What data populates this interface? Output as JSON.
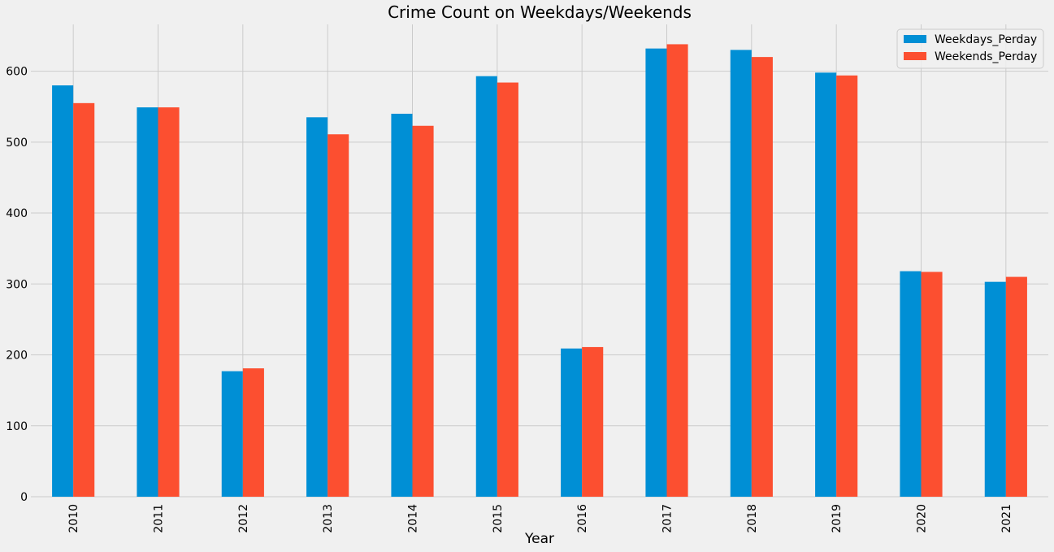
{
  "chart_data": {
    "type": "bar",
    "title": "Crime Count on Weekdays/Weekends",
    "xlabel": "Year",
    "ylabel": "",
    "categories": [
      "2010",
      "2011",
      "2012",
      "2013",
      "2014",
      "2015",
      "2016",
      "2017",
      "2018",
      "2019",
      "2020",
      "2021"
    ],
    "series": [
      {
        "name": "Weekdays_Perday",
        "color": "#008fd5",
        "values": [
          580,
          549,
          177,
          535,
          540,
          593,
          209,
          632,
          630,
          598,
          318,
          303
        ]
      },
      {
        "name": "Weekends_Perday",
        "color": "#fc4f30",
        "values": [
          555,
          549,
          181,
          511,
          523,
          584,
          211,
          638,
          620,
          594,
          317,
          310
        ]
      }
    ],
    "ylim": [
      0,
      666
    ],
    "yticks": [
      "0",
      "100",
      "200",
      "300",
      "400",
      "500",
      "600"
    ],
    "grid": true,
    "legend_position": "top-right",
    "background": "#f0f0f0",
    "grid_color": "#cbcbcb"
  }
}
